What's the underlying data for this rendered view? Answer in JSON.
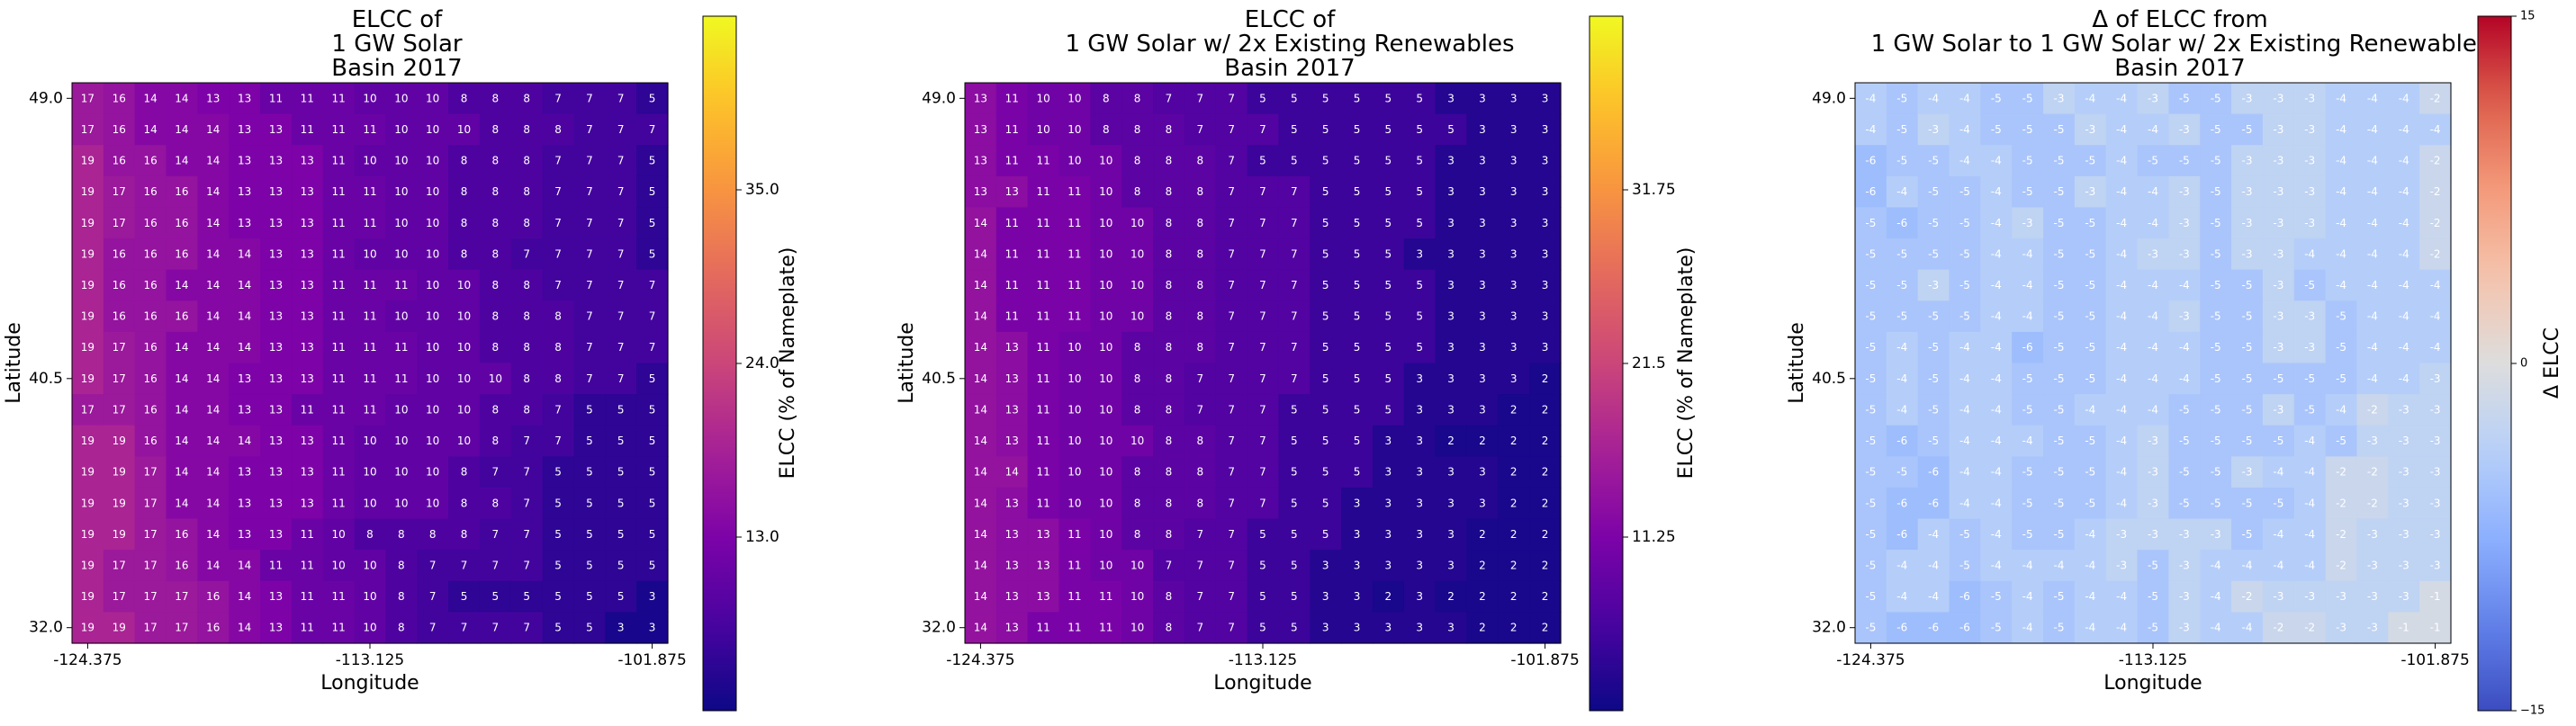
{
  "chart_data": [
    {
      "type": "heatmap",
      "title": [
        "ELCC of",
        "1 GW Solar",
        "Basin 2017"
      ],
      "xlabel": "Longitude",
      "ylabel": "Latitude",
      "xticks": [
        "-124.375",
        "-113.125",
        "-101.875"
      ],
      "yticks": [
        "49.0",
        "40.5",
        "32.0"
      ],
      "colormap": "plasma",
      "colorbar_label": "ELCC (% of Nameplate)",
      "colorbar_ticks": [
        "35.0",
        "24.0",
        "13.0"
      ],
      "vmin": 2,
      "vmax": 46,
      "values": [
        [
          17,
          16,
          14,
          14,
          13,
          13,
          11,
          11,
          11,
          10,
          10,
          10,
          8,
          8,
          8,
          7,
          7,
          7,
          5
        ],
        [
          17,
          16,
          14,
          14,
          14,
          13,
          13,
          11,
          11,
          11,
          10,
          10,
          10,
          8,
          8,
          8,
          7,
          7,
          7
        ],
        [
          19,
          16,
          16,
          14,
          14,
          13,
          13,
          13,
          11,
          10,
          10,
          10,
          8,
          8,
          8,
          7,
          7,
          7,
          5
        ],
        [
          19,
          17,
          16,
          16,
          14,
          13,
          13,
          13,
          11,
          11,
          10,
          10,
          8,
          8,
          8,
          7,
          7,
          7,
          5
        ],
        [
          19,
          17,
          16,
          16,
          14,
          13,
          13,
          13,
          11,
          11,
          10,
          10,
          8,
          8,
          8,
          7,
          7,
          7,
          5
        ],
        [
          19,
          16,
          16,
          16,
          14,
          14,
          13,
          13,
          11,
          10,
          10,
          10,
          8,
          8,
          7,
          7,
          7,
          7,
          5
        ],
        [
          19,
          16,
          16,
          14,
          14,
          14,
          13,
          13,
          11,
          11,
          11,
          10,
          10,
          8,
          8,
          7,
          7,
          7,
          7
        ],
        [
          19,
          16,
          16,
          16,
          14,
          14,
          13,
          13,
          11,
          11,
          10,
          10,
          10,
          8,
          8,
          8,
          7,
          7,
          7
        ],
        [
          19,
          17,
          16,
          14,
          14,
          14,
          13,
          13,
          11,
          11,
          11,
          10,
          10,
          8,
          8,
          8,
          7,
          7,
          7
        ],
        [
          19,
          17,
          16,
          14,
          14,
          13,
          13,
          13,
          11,
          11,
          11,
          10,
          10,
          10,
          8,
          8,
          7,
          7,
          5
        ],
        [
          17,
          17,
          16,
          14,
          14,
          13,
          13,
          11,
          11,
          11,
          10,
          10,
          10,
          8,
          8,
          7,
          5,
          5,
          5
        ],
        [
          19,
          19,
          16,
          14,
          14,
          14,
          13,
          13,
          11,
          10,
          10,
          10,
          10,
          8,
          7,
          7,
          5,
          5,
          5
        ],
        [
          19,
          19,
          17,
          14,
          14,
          13,
          13,
          13,
          11,
          10,
          10,
          10,
          8,
          7,
          7,
          5,
          5,
          5,
          5
        ],
        [
          19,
          19,
          17,
          14,
          14,
          13,
          13,
          13,
          11,
          10,
          10,
          10,
          8,
          8,
          7,
          5,
          5,
          5,
          5
        ],
        [
          19,
          19,
          17,
          16,
          14,
          13,
          13,
          11,
          10,
          8,
          8,
          8,
          8,
          7,
          7,
          5,
          5,
          5,
          5
        ],
        [
          19,
          17,
          17,
          16,
          14,
          14,
          11,
          11,
          10,
          10,
          8,
          7,
          7,
          7,
          7,
          5,
          5,
          5,
          5
        ],
        [
          19,
          17,
          17,
          17,
          16,
          14,
          13,
          11,
          11,
          10,
          8,
          7,
          5,
          5,
          5,
          5,
          5,
          5,
          3
        ],
        [
          19,
          19,
          17,
          17,
          16,
          14,
          13,
          11,
          11,
          10,
          8,
          7,
          7,
          7,
          7,
          5,
          5,
          3,
          3
        ]
      ]
    },
    {
      "type": "heatmap",
      "title": [
        "ELCC of",
        "1 GW Solar w/ 2x Existing Renewables",
        "Basin 2017"
      ],
      "xlabel": "Longitude",
      "ylabel": "Latitude",
      "xticks": [
        "-124.375",
        "-113.125",
        "-101.875"
      ],
      "yticks": [
        "49.0",
        "40.5",
        "32.0"
      ],
      "colormap": "plasma",
      "colorbar_label": "ELCC (% of Nameplate)",
      "colorbar_ticks": [
        "31.75",
        "21.5",
        "11.25"
      ],
      "vmin": 1,
      "vmax": 42,
      "values": [
        [
          13,
          11,
          10,
          10,
          8,
          8,
          7,
          7,
          7,
          5,
          5,
          5,
          5,
          5,
          5,
          3,
          3,
          3,
          3
        ],
        [
          13,
          11,
          10,
          10,
          8,
          8,
          8,
          7,
          7,
          7,
          5,
          5,
          5,
          5,
          5,
          5,
          3,
          3,
          3
        ],
        [
          13,
          11,
          11,
          10,
          10,
          8,
          8,
          8,
          7,
          5,
          5,
          5,
          5,
          5,
          5,
          3,
          3,
          3,
          3
        ],
        [
          13,
          13,
          11,
          11,
          10,
          8,
          8,
          8,
          7,
          7,
          7,
          5,
          5,
          5,
          5,
          3,
          3,
          3,
          3
        ],
        [
          14,
          11,
          11,
          11,
          10,
          10,
          8,
          8,
          7,
          7,
          7,
          5,
          5,
          5,
          5,
          3,
          3,
          3,
          3
        ],
        [
          14,
          11,
          11,
          11,
          10,
          10,
          8,
          8,
          7,
          7,
          7,
          5,
          5,
          5,
          3,
          3,
          3,
          3,
          3
        ],
        [
          14,
          11,
          11,
          11,
          10,
          10,
          8,
          8,
          7,
          7,
          7,
          5,
          5,
          5,
          5,
          3,
          3,
          3,
          3
        ],
        [
          14,
          11,
          11,
          11,
          10,
          10,
          8,
          8,
          7,
          7,
          7,
          5,
          5,
          5,
          5,
          3,
          3,
          3,
          3
        ],
        [
          14,
          13,
          11,
          10,
          10,
          8,
          8,
          8,
          7,
          7,
          7,
          5,
          5,
          5,
          5,
          3,
          3,
          3,
          3
        ],
        [
          14,
          13,
          11,
          10,
          10,
          8,
          8,
          7,
          7,
          7,
          7,
          5,
          5,
          5,
          3,
          3,
          3,
          3,
          2
        ],
        [
          14,
          13,
          11,
          10,
          10,
          8,
          8,
          7,
          7,
          7,
          5,
          5,
          5,
          5,
          3,
          3,
          3,
          2,
          2
        ],
        [
          14,
          13,
          11,
          10,
          10,
          10,
          8,
          8,
          7,
          7,
          5,
          5,
          5,
          3,
          3,
          2,
          2,
          2,
          2
        ],
        [
          14,
          14,
          11,
          10,
          10,
          8,
          8,
          8,
          7,
          7,
          5,
          5,
          5,
          3,
          3,
          3,
          3,
          2,
          2
        ],
        [
          14,
          13,
          11,
          10,
          10,
          8,
          8,
          8,
          7,
          7,
          5,
          5,
          3,
          3,
          3,
          3,
          3,
          2,
          2
        ],
        [
          14,
          13,
          13,
          11,
          10,
          8,
          8,
          7,
          7,
          5,
          5,
          5,
          3,
          3,
          3,
          3,
          2,
          2,
          2
        ],
        [
          14,
          13,
          13,
          11,
          10,
          10,
          7,
          7,
          7,
          5,
          5,
          3,
          3,
          3,
          3,
          3,
          2,
          2,
          2
        ],
        [
          14,
          13,
          13,
          11,
          11,
          10,
          8,
          7,
          7,
          5,
          5,
          3,
          3,
          2,
          3,
          2,
          2,
          2,
          2
        ],
        [
          14,
          13,
          11,
          11,
          11,
          10,
          8,
          7,
          7,
          5,
          5,
          3,
          3,
          3,
          3,
          3,
          2,
          2,
          2
        ]
      ]
    },
    {
      "type": "heatmap",
      "title": [
        "Δ of ELCC from",
        "1 GW Solar to 1 GW Solar w/ 2x Existing Renewables",
        "Basin 2017"
      ],
      "xlabel": "Longitude",
      "ylabel": "Latitude",
      "xticks": [
        "-124.375",
        "-113.125",
        "-101.875"
      ],
      "yticks": [
        "49.0",
        "40.5",
        "32.0"
      ],
      "colormap": "coolwarm",
      "colorbar_label": "Δ ELCC",
      "colorbar_ticks": [
        "15",
        "0",
        "−15"
      ],
      "vmin": -15,
      "vmax": 15,
      "values": [
        [
          -4,
          -5,
          -4,
          -4,
          -5,
          -5,
          -3,
          -4,
          -4,
          -3,
          -5,
          -5,
          -3,
          -3,
          -3,
          -4,
          -4,
          -4,
          -2
        ],
        [
          -4,
          -5,
          -3,
          -4,
          -5,
          -5,
          -5,
          -3,
          -4,
          -4,
          -3,
          -5,
          -5,
          -3,
          -3,
          -4,
          -4,
          -4,
          -4
        ],
        [
          -6,
          -5,
          -5,
          -4,
          -4,
          -5,
          -5,
          -5,
          -4,
          -5,
          -5,
          -5,
          -3,
          -3,
          -3,
          -4,
          -4,
          -4,
          -2
        ],
        [
          -6,
          -4,
          -5,
          -5,
          -4,
          -5,
          -5,
          -3,
          -4,
          -4,
          -3,
          -5,
          -3,
          -3,
          -3,
          -4,
          -4,
          -4,
          -2
        ],
        [
          -5,
          -6,
          -5,
          -5,
          -4,
          -3,
          -5,
          -5,
          -4,
          -4,
          -3,
          -5,
          -3,
          -3,
          -3,
          -4,
          -4,
          -4,
          -2
        ],
        [
          -5,
          -5,
          -5,
          -5,
          -4,
          -4,
          -5,
          -5,
          -4,
          -3,
          -3,
          -5,
          -3,
          -3,
          -4,
          -4,
          -4,
          -4,
          -2
        ],
        [
          -5,
          -5,
          -3,
          -5,
          -4,
          -4,
          -5,
          -5,
          -4,
          -4,
          -4,
          -5,
          -5,
          -3,
          -5,
          -4,
          -4,
          -4,
          -4
        ],
        [
          -5,
          -5,
          -5,
          -5,
          -4,
          -4,
          -5,
          -5,
          -4,
          -4,
          -3,
          -5,
          -5,
          -3,
          -3,
          -5,
          -4,
          -4,
          -4
        ],
        [
          -5,
          -4,
          -5,
          -4,
          -4,
          -6,
          -5,
          -5,
          -4,
          -4,
          -4,
          -5,
          -5,
          -3,
          -3,
          -5,
          -4,
          -4,
          -4
        ],
        [
          -5,
          -4,
          -5,
          -4,
          -4,
          -5,
          -5,
          -5,
          -4,
          -4,
          -4,
          -5,
          -5,
          -5,
          -5,
          -5,
          -4,
          -4,
          -3
        ],
        [
          -5,
          -4,
          -5,
          -4,
          -4,
          -5,
          -5,
          -4,
          -4,
          -4,
          -5,
          -5,
          -5,
          -3,
          -5,
          -4,
          -2,
          -3,
          -3
        ],
        [
          -5,
          -6,
          -5,
          -4,
          -4,
          -4,
          -5,
          -5,
          -4,
          -3,
          -5,
          -5,
          -5,
          -5,
          -4,
          -5,
          -3,
          -3,
          -3
        ],
        [
          -5,
          -5,
          -6,
          -4,
          -4,
          -5,
          -5,
          -5,
          -4,
          -3,
          -5,
          -5,
          -3,
          -4,
          -4,
          -2,
          -2,
          -3,
          -3
        ],
        [
          -5,
          -6,
          -6,
          -4,
          -4,
          -5,
          -5,
          -5,
          -4,
          -3,
          -5,
          -5,
          -5,
          -5,
          -4,
          -2,
          -2,
          -3,
          -3
        ],
        [
          -5,
          -6,
          -4,
          -5,
          -4,
          -5,
          -5,
          -4,
          -3,
          -3,
          -3,
          -3,
          -5,
          -4,
          -4,
          -2,
          -3,
          -3,
          -3
        ],
        [
          -5,
          -4,
          -4,
          -5,
          -4,
          -4,
          -4,
          -4,
          -3,
          -5,
          -3,
          -4,
          -4,
          -4,
          -4,
          -2,
          -3,
          -3,
          -3
        ],
        [
          -5,
          -4,
          -4,
          -6,
          -5,
          -4,
          -5,
          -4,
          -4,
          -5,
          -3,
          -4,
          -2,
          -3,
          -3,
          -3,
          -3,
          -3,
          -1
        ],
        [
          -5,
          -6,
          -6,
          -6,
          -5,
          -4,
          -5,
          -4,
          -4,
          -5,
          -3,
          -4,
          -4,
          -2,
          -2,
          -3,
          -3,
          -1,
          -1
        ]
      ]
    }
  ]
}
